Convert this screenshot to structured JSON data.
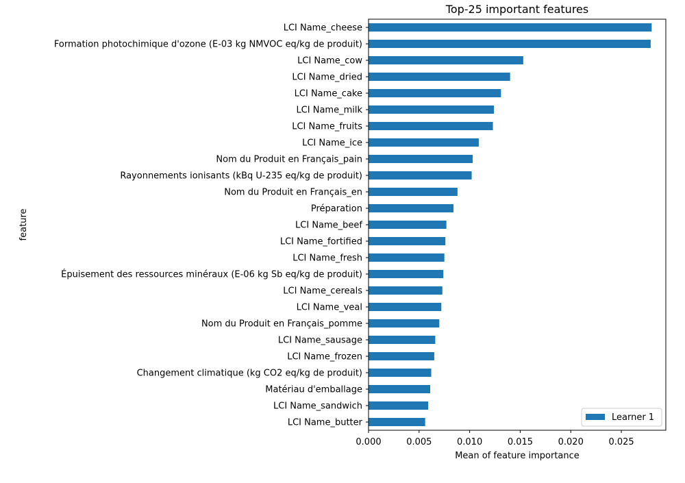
{
  "chart_data": {
    "type": "bar",
    "orientation": "horizontal",
    "title": "Top-25 important features",
    "xlabel": "Mean of feature importance",
    "ylabel": "feature",
    "xlim": [
      0,
      0.0294
    ],
    "xticks": [
      0.0,
      0.005,
      0.01,
      0.015,
      0.02,
      0.025
    ],
    "xtick_labels": [
      "0.000",
      "0.005",
      "0.010",
      "0.015",
      "0.020",
      "0.025"
    ],
    "grid": false,
    "legend_position": "bottom-right",
    "categories": [
      "LCI Name_cheese",
      "Formation photochimique d'ozone (E-03 kg NMVOC eq/kg de produit)",
      "LCI Name_cow",
      "LCI Name_dried",
      "LCI Name_cake",
      "LCI Name_milk",
      "LCI Name_fruits",
      "LCI Name_ice",
      "Nom du Produit en Français_pain",
      "Rayonnements ionisants (kBq U-235 eq/kg de produit)",
      "Nom du Produit en Français_en",
      "Préparation",
      "LCI Name_beef",
      "LCI Name_fortified",
      "LCI Name_fresh",
      "Épuisement des ressources minéraux (E-06 kg Sb eq/kg de produit)",
      "LCI Name_cereals",
      "LCI Name_veal",
      "Nom du Produit en Français_pomme",
      "LCI Name_sausage",
      "LCI Name_frozen",
      "Changement climatique (kg CO2 eq/kg de produit)",
      "Matériau d'emballage",
      "LCI Name_sandwich",
      "LCI Name_butter"
    ],
    "series": [
      {
        "name": "Learner 1",
        "color": "#1f77b4",
        "values": [
          0.028,
          0.0279,
          0.0153,
          0.014,
          0.0131,
          0.0124,
          0.0123,
          0.0109,
          0.0103,
          0.0102,
          0.0088,
          0.0084,
          0.0077,
          0.0076,
          0.0075,
          0.0074,
          0.0073,
          0.0072,
          0.007,
          0.0066,
          0.0065,
          0.0062,
          0.0061,
          0.0059,
          0.0056
        ]
      }
    ]
  }
}
